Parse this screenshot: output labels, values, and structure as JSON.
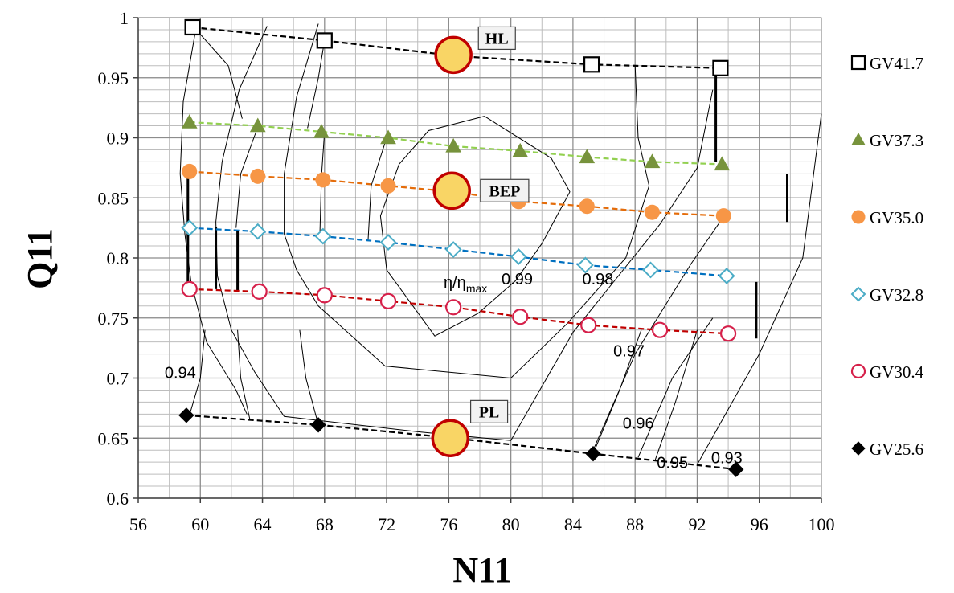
{
  "chart_data": {
    "type": "scatter",
    "title": "",
    "xlabel": "N11",
    "ylabel": "Q11",
    "xlim": [
      56,
      100
    ],
    "ylim": [
      0.6,
      1.0
    ],
    "x_ticks": [
      "56",
      "60",
      "64",
      "68",
      "72",
      "76",
      "80",
      "84",
      "88",
      "92",
      "96",
      "100"
    ],
    "y_ticks": [
      "0.6",
      "0.65",
      "0.7",
      "0.75",
      "0.8",
      "0.85",
      "0.9",
      "0.95",
      "1"
    ],
    "grid": true,
    "legend_position": "right",
    "series": [
      {
        "name": "GV41.7",
        "marker": "open-square",
        "color": "#000000",
        "line_color": "#000000",
        "x": [
          59.5,
          68.0,
          76.5,
          85.2,
          93.5
        ],
        "y": [
          0.992,
          0.981,
          0.968,
          0.961,
          0.958
        ]
      },
      {
        "name": "GV37.3",
        "marker": "filled-triangle",
        "color": "#77933c",
        "line_color": "#92d050",
        "x": [
          59.3,
          63.7,
          67.8,
          72.1,
          76.3,
          80.6,
          84.9,
          89.1,
          93.6
        ],
        "y": [
          0.913,
          0.91,
          0.905,
          0.9,
          0.893,
          0.889,
          0.884,
          0.88,
          0.878
        ]
      },
      {
        "name": "GV35.0",
        "marker": "filled-circle",
        "color": "#f79646",
        "line_color": "#e46c0a",
        "x": [
          59.3,
          63.7,
          67.9,
          72.1,
          76.4,
          80.5,
          84.9,
          89.1,
          93.7
        ],
        "y": [
          0.872,
          0.868,
          0.865,
          0.86,
          0.855,
          0.847,
          0.843,
          0.838,
          0.835
        ]
      },
      {
        "name": "GV32.8",
        "marker": "open-diamond",
        "color": "#4bacc6",
        "line_color": "#0070c0",
        "x": [
          59.3,
          63.7,
          67.9,
          72.1,
          76.3,
          80.5,
          84.8,
          89.0,
          93.9
        ],
        "y": [
          0.825,
          0.822,
          0.818,
          0.813,
          0.807,
          0.801,
          0.794,
          0.79,
          0.785
        ]
      },
      {
        "name": "GV30.4",
        "marker": "open-circle",
        "color": "#d6204a",
        "line_color": "#c00000",
        "x": [
          59.3,
          63.8,
          68.0,
          72.1,
          76.3,
          80.6,
          85.0,
          89.6,
          94.0
        ],
        "y": [
          0.774,
          0.772,
          0.769,
          0.764,
          0.759,
          0.751,
          0.744,
          0.74,
          0.737
        ]
      },
      {
        "name": "GV25.6",
        "marker": "filled-diamond",
        "color": "#000000",
        "line_color": "#000000",
        "x": [
          59.1,
          67.6,
          76.3,
          85.3,
          94.5
        ],
        "y": [
          0.669,
          0.661,
          0.65,
          0.637,
          0.624
        ]
      }
    ],
    "operating_points": [
      {
        "label": "HL",
        "x": 76.3,
        "y": 0.969,
        "box_x": 79.1,
        "box_y": 0.983
      },
      {
        "label": "BEP",
        "x": 76.2,
        "y": 0.856,
        "box_x": 79.6,
        "box_y": 0.856
      },
      {
        "label": "PL",
        "x": 76.1,
        "y": 0.65,
        "box_x": 78.6,
        "box_y": 0.672
      }
    ],
    "efficiency_contours": [
      {
        "label": "0.99",
        "lx": 79.4,
        "ly": 0.778,
        "points": [
          [
            78.3,
            0.918
          ],
          [
            82.6,
            0.883
          ],
          [
            83.8,
            0.855
          ],
          [
            82.0,
            0.812
          ],
          [
            80.3,
            0.781
          ],
          [
            77.9,
            0.754
          ],
          [
            75.1,
            0.735
          ],
          [
            72.0,
            0.79
          ],
          [
            71.6,
            0.835
          ],
          [
            72.8,
            0.878
          ],
          [
            74.7,
            0.906
          ],
          [
            78.3,
            0.918
          ]
        ]
      },
      {
        "label": "0.98",
        "lx": 84.6,
        "ly": 0.778,
        "points": [
          [
            67.6,
            0.995
          ],
          [
            66.2,
            0.934
          ],
          [
            65.4,
            0.87
          ],
          [
            65.4,
            0.82
          ],
          [
            66.2,
            0.79
          ],
          [
            67.6,
            0.76
          ],
          [
            71.9,
            0.71
          ],
          [
            80.0,
            0.7
          ],
          [
            83.6,
            0.745
          ],
          [
            87.4,
            0.8
          ],
          [
            88.9,
            0.86
          ],
          [
            88.2,
            0.9
          ],
          [
            88.0,
            0.96
          ]
        ]
      },
      {
        "label": "0.97",
        "lx": 86.6,
        "ly": 0.718,
        "points": [
          [
            64.3,
            0.993
          ],
          [
            62.5,
            0.94
          ],
          [
            61.4,
            0.88
          ],
          [
            61.0,
            0.83
          ],
          [
            61.1,
            0.785
          ],
          [
            62.0,
            0.74
          ],
          [
            63.5,
            0.705
          ],
          [
            65.4,
            0.668
          ],
          [
            74.2,
            0.655
          ],
          [
            80.0,
            0.648
          ],
          [
            84.0,
            0.738
          ],
          [
            89.6,
            0.828
          ],
          [
            92.0,
            0.875
          ],
          [
            93.0,
            0.94
          ]
        ]
      },
      {
        "label": "0.96",
        "lx": 87.2,
        "ly": 0.658,
        "points": [
          [
            85.3,
            0.64
          ],
          [
            88.0,
            0.72
          ],
          [
            91.6,
            0.795
          ],
          [
            94.0,
            0.84
          ]
        ]
      },
      {
        "label": "0.95",
        "lx": 89.4,
        "ly": 0.625,
        "points": [
          [
            88.2,
            0.634
          ],
          [
            90.4,
            0.7
          ],
          [
            93.0,
            0.75
          ]
        ]
      },
      {
        "label": "0.94",
        "lx": 57.7,
        "ly": 0.7,
        "points": [
          [
            59.7,
            0.99
          ],
          [
            58.9,
            0.93
          ],
          [
            58.7,
            0.87
          ],
          [
            59.0,
            0.82
          ],
          [
            59.4,
            0.78
          ],
          [
            60.4,
            0.73
          ],
          [
            62.3,
            0.69
          ],
          [
            63.0,
            0.67
          ]
        ]
      },
      {
        "label": "0.93",
        "lx": 92.9,
        "ly": 0.629,
        "points": [
          [
            92.0,
            0.628
          ],
          [
            96.0,
            0.72
          ],
          [
            98.8,
            0.8
          ],
          [
            100.0,
            0.92
          ]
        ]
      }
    ],
    "contour_connectors": [
      [
        [
          59.6,
          0.992
        ],
        [
          61.8,
          0.96
        ],
        [
          62.7,
          0.916
        ]
      ],
      [
        [
          68.0,
          0.981
        ],
        [
          67.6,
          0.95
        ],
        [
          66.9,
          0.908
        ]
      ],
      [
        [
          63.7,
          0.909
        ],
        [
          62.6,
          0.87
        ],
        [
          62.3,
          0.825
        ]
      ],
      [
        [
          68.0,
          0.905
        ],
        [
          67.8,
          0.868
        ],
        [
          67.7,
          0.82
        ]
      ],
      [
        [
          72.0,
          0.9
        ],
        [
          71.0,
          0.86
        ],
        [
          70.8,
          0.814
        ]
      ],
      [
        [
          59.3,
          0.669
        ],
        [
          60.0,
          0.7
        ],
        [
          60.3,
          0.74
        ]
      ],
      [
        [
          63.2,
          0.665
        ],
        [
          62.6,
          0.7
        ],
        [
          62.4,
          0.74
        ]
      ],
      [
        [
          67.6,
          0.661
        ],
        [
          66.8,
          0.7
        ],
        [
          66.4,
          0.74
        ]
      ],
      [
        [
          85.3,
          0.637
        ],
        [
          87.0,
          0.69
        ],
        [
          88.4,
          0.74
        ]
      ],
      [
        [
          89.3,
          0.632
        ],
        [
          90.6,
          0.68
        ],
        [
          92.0,
          0.74
        ]
      ]
    ],
    "thick_segments": [
      [
        [
          59.2,
          0.87
        ],
        [
          59.2,
          0.774
        ]
      ],
      [
        [
          61.0,
          0.826
        ],
        [
          61.0,
          0.774
        ]
      ],
      [
        [
          62.4,
          0.823
        ],
        [
          62.4,
          0.773
        ]
      ],
      [
        [
          93.2,
          0.955
        ],
        [
          93.2,
          0.88
        ]
      ],
      [
        [
          95.8,
          0.78
        ],
        [
          95.8,
          0.733
        ]
      ],
      [
        [
          97.8,
          0.87
        ],
        [
          97.8,
          0.83
        ]
      ]
    ],
    "annotation": "η/η"
  }
}
